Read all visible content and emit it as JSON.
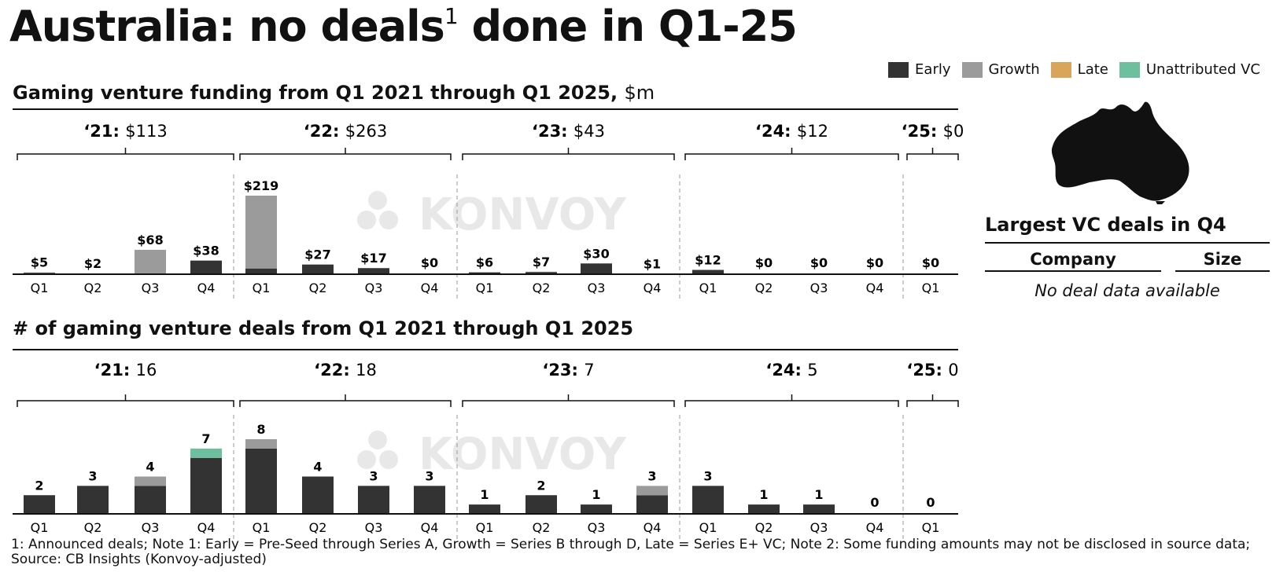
{
  "title": {
    "main": "Australia: no deals",
    "sup": "1",
    "rest": " done in Q1-25"
  },
  "legend": [
    {
      "label": "Early",
      "color": "#333333"
    },
    {
      "label": "Growth",
      "color": "#9b9b9b"
    },
    {
      "label": "Late",
      "color": "#d9a55b"
    },
    {
      "label": "Unattributed VC",
      "color": "#6dbf9d"
    }
  ],
  "watermark": "KONVOY",
  "chart_data": [
    {
      "type": "bar",
      "stacked": true,
      "title": "Gaming venture funding from Q1 2021 through Q1 2025,",
      "unit": "$m",
      "categories": [
        "Q1",
        "Q2",
        "Q3",
        "Q4",
        "Q1",
        "Q2",
        "Q3",
        "Q4",
        "Q1",
        "Q2",
        "Q3",
        "Q4",
        "Q1",
        "Q2",
        "Q3",
        "Q4",
        "Q1"
      ],
      "labels": [
        "$5",
        "$2",
        "$68",
        "$38",
        "$219",
        "$27",
        "$17",
        "$0",
        "$6",
        "$7",
        "$30",
        "$1",
        "$12",
        "$0",
        "$0",
        "$0",
        "$0"
      ],
      "series": [
        {
          "name": "Early",
          "values": [
            4,
            2,
            2,
            38,
            16,
            27,
            17,
            0,
            5,
            6,
            30,
            1,
            12,
            0,
            0,
            0,
            0
          ]
        },
        {
          "name": "Growth",
          "values": [
            1,
            0,
            66,
            0,
            203,
            0,
            0,
            0,
            1,
            1,
            0,
            0,
            0,
            0,
            0,
            0,
            0
          ]
        },
        {
          "name": "Late",
          "values": [
            0,
            0,
            0,
            0,
            0,
            0,
            0,
            0,
            0,
            0,
            0,
            0,
            0,
            0,
            0,
            0,
            0
          ]
        },
        {
          "name": "Unattributed VC",
          "values": [
            0,
            0,
            0,
            0,
            0,
            0,
            0,
            0,
            0,
            0,
            0,
            0,
            0,
            0,
            0,
            0,
            0
          ]
        }
      ],
      "years": [
        {
          "label": "‘21:",
          "total": "$113",
          "quarters": 4
        },
        {
          "label": "‘22:",
          "total": "$263",
          "quarters": 4
        },
        {
          "label": "‘23:",
          "total": "$43",
          "quarters": 4
        },
        {
          "label": "‘24:",
          "total": "$12",
          "quarters": 4
        },
        {
          "label": "‘25:",
          "total": "$0",
          "quarters": 1
        }
      ],
      "ylim": [
        0,
        219
      ]
    },
    {
      "type": "bar",
      "stacked": true,
      "title": "# of gaming venture deals from Q1 2021 through Q1 2025",
      "unit": "",
      "categories": [
        "Q1",
        "Q2",
        "Q3",
        "Q4",
        "Q1",
        "Q2",
        "Q3",
        "Q4",
        "Q1",
        "Q2",
        "Q3",
        "Q4",
        "Q1",
        "Q2",
        "Q3",
        "Q4",
        "Q1"
      ],
      "labels": [
        "2",
        "3",
        "4",
        "7",
        "8",
        "4",
        "3",
        "3",
        "1",
        "2",
        "1",
        "3",
        "3",
        "1",
        "1",
        "0",
        "0"
      ],
      "series": [
        {
          "name": "Early",
          "values": [
            2,
            3,
            3,
            6,
            7,
            4,
            3,
            3,
            1,
            2,
            1,
            2,
            3,
            1,
            1,
            0,
            0
          ]
        },
        {
          "name": "Growth",
          "values": [
            0,
            0,
            1,
            0,
            1,
            0,
            0,
            0,
            0,
            0,
            0,
            1,
            0,
            0,
            0,
            0,
            0
          ]
        },
        {
          "name": "Late",
          "values": [
            0,
            0,
            0,
            0,
            0,
            0,
            0,
            0,
            0,
            0,
            0,
            0,
            0,
            0,
            0,
            0,
            0
          ]
        },
        {
          "name": "Unattributed VC",
          "values": [
            0,
            0,
            0,
            1,
            0,
            0,
            0,
            0,
            0,
            0,
            0,
            0,
            0,
            0,
            0,
            0,
            0
          ]
        }
      ],
      "years": [
        {
          "label": "‘21:",
          "total": "16",
          "quarters": 4
        },
        {
          "label": "‘22:",
          "total": "18",
          "quarters": 4
        },
        {
          "label": "‘23:",
          "total": "7",
          "quarters": 4
        },
        {
          "label": "‘24:",
          "total": "5",
          "quarters": 4
        },
        {
          "label": "‘25:",
          "total": "0",
          "quarters": 1
        }
      ],
      "ylim": [
        0,
        8
      ]
    }
  ],
  "deals_panel": {
    "title": "Largest VC deals in Q4",
    "col_company": "Company",
    "col_size": "Size",
    "empty": "No deal data available"
  },
  "footnote": "1: Announced deals; Note 1: Early = Pre-Seed through Series A, Growth = Series B through D, Late = Series E+ VC; Note 2: Some funding amounts may not be disclosed in source data; Source: CB Insights (Konvoy-adjusted)"
}
